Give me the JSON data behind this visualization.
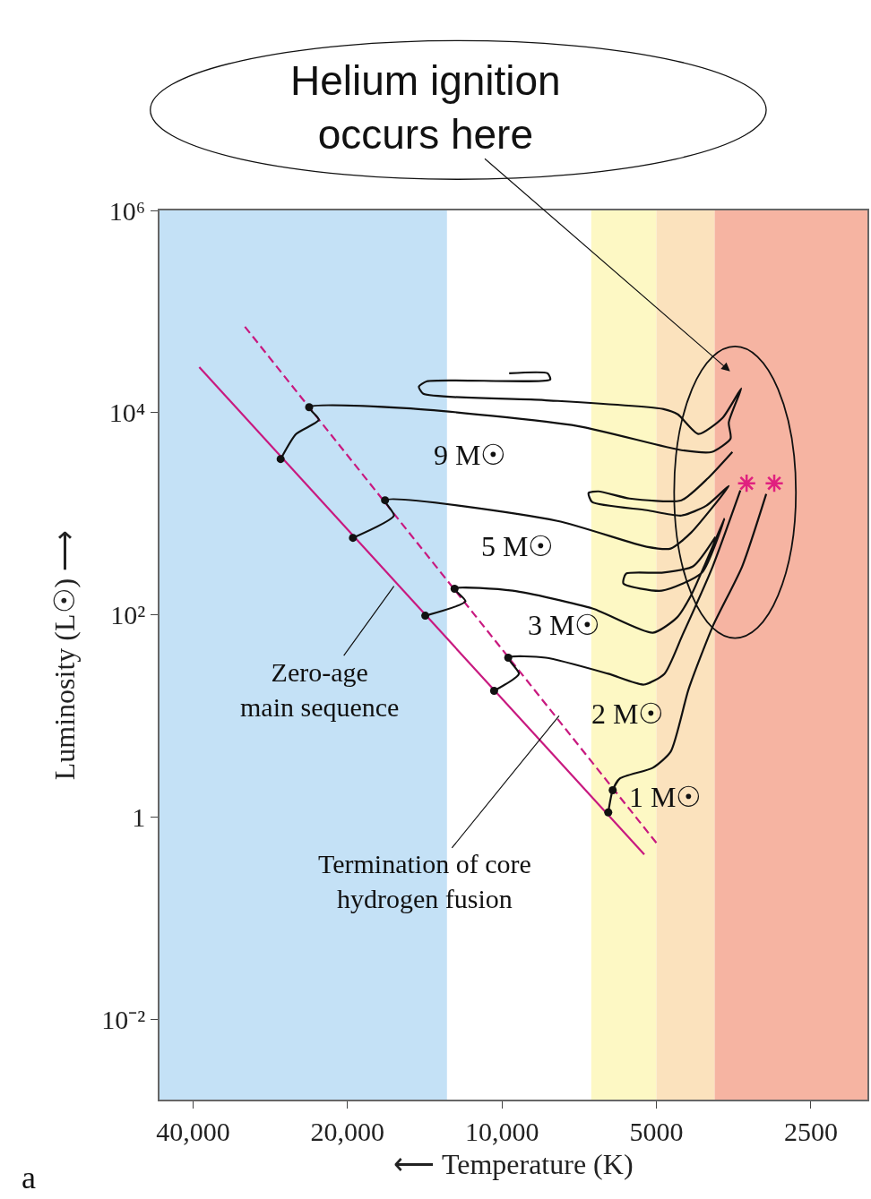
{
  "chart_data": {
    "type": "line",
    "xlabel": "⟵ Temperature (K)",
    "ylabel": "Luminosity (L☉) ⟶",
    "xlim": [
      46500,
      1940
    ],
    "ylim": [
      0.0016,
      1000000
    ],
    "log": "xy",
    "grid": false,
    "xticks": [
      {
        "value": 40000,
        "label": "40,000"
      },
      {
        "value": 20000,
        "label": "20,000"
      },
      {
        "value": 10000,
        "label": "10,000"
      },
      5000,
      2500
    ],
    "yticks": [
      {
        "value": 0.01,
        "label": "10⁻²"
      },
      1,
      {
        "value": 100,
        "label": "10²"
      },
      {
        "value": 10000,
        "label": "10⁴"
      },
      {
        "value": 1000000,
        "label": "10⁶"
      }
    ],
    "bands": [
      {
        "axis": "x",
        "from": 46500,
        "to": 12800,
        "color": "#c4e1f6"
      },
      {
        "axis": "x",
        "from": 6700,
        "to": 5000,
        "color": "#fdf8c4"
      },
      {
        "axis": "x",
        "from": 5000,
        "to": 3850,
        "color": "#fbe2bd"
      },
      {
        "axis": "x",
        "from": 3850,
        "to": 1940,
        "color": "#f6b4a2"
      }
    ],
    "series": [
      {
        "color": "#c8197f",
        "line_style": "solid",
        "x": [
          38900,
          5280
        ],
        "values": [
          28200,
          0.425
        ]
      },
      {
        "color": "#c8197f",
        "line_style": "dashed",
        "x": [
          31700,
          5000
        ],
        "values": [
          70800,
          0.553
        ]
      },
      {
        "name": "9 M☉",
        "color": "#111111",
        "line_style": "solid",
        "x": [
          27000,
          25200,
          22740,
          23760,
          15360,
          7114,
          4470,
          3900,
          3585,
          3614,
          3417,
          3717,
          4142,
          4542,
          4842,
          8282,
          14230,
          14520,
          14000,
          8054,
          8150,
          9683
        ],
        "values": [
          3470,
          6140,
          8490,
          11300,
          11070,
          7360,
          4250,
          4080,
          5540,
          8000,
          17340,
          8850,
          6140,
          9600,
          10840,
          13300,
          15350,
          18070,
          20420,
          21230,
          24490,
          24490
        ]
      },
      {
        "name": "5 M☉",
        "color": "#111111",
        "line_style": "solid",
        "x": [
          19520,
          16240,
          16900,
          7800,
          5225,
          4690,
          4277,
          3614,
          3996,
          4470,
          5225,
          6672,
          6780,
          6486,
          5638,
          4470,
          3963,
          3556
        ],
        "values": [
          577,
          959,
          1358,
          849,
          471,
          452,
          652,
          1880,
          1202,
          959,
          1084,
          1303,
          1600,
          1663,
          1413,
          1358,
          2259,
          4080
        ]
      },
      {
        "name": "3 M☉",
        "color": "#111111",
        "line_style": "solid",
        "x": [
          14110,
          11780,
          12370,
          9530,
          6646,
          5080,
          4560,
          4277,
          3996,
          3687,
          4077,
          4881,
          5799,
          5730,
          4881,
          4243,
          3837
        ],
        "values": [
          98,
          136,
          181,
          173,
          115,
          66.5,
          94,
          157,
          340,
          885,
          261,
          173,
          204,
          255,
          261,
          301,
          589
        ]
      },
      {
        "name": "2 M☉",
        "color": "#111111",
        "line_style": "solid",
        "x": [
          10360,
          9268,
          9723,
          8216,
          6207,
          5288,
          4823,
          4452,
          3884,
          3431
        ],
        "values": [
          17.7,
          26.1,
          37.6,
          37.6,
          26.1,
          20.4,
          26.1,
          62.5,
          301,
          1698
        ]
      },
      {
        "name": "1 M☉",
        "color": "#111111",
        "line_style": "solid",
        "x": [
          6207,
          6084,
          5893,
          5080,
          4690,
          4328,
          3884,
          3403,
          3055
        ],
        "values": [
          1.11,
          1.84,
          2.4,
          3.07,
          4.43,
          18.4,
          76.7,
          301,
          1567
        ]
      },
      {
        "type": "scatter",
        "color": "#111111",
        "marker": "circle",
        "x": [
          27000,
          23760,
          19520,
          16900,
          14110,
          12370,
          10360,
          9723,
          6207,
          6084
        ],
        "values": [
          3470,
          11300,
          577,
          1358,
          98,
          181,
          17.7,
          37.6,
          1.11,
          1.84
        ]
      },
      {
        "type": "scatter",
        "color": "#e0207f",
        "marker": "cross",
        "x": [
          3336,
          2947
        ],
        "values": [
          2000,
          2000
        ]
      }
    ],
    "annotations": [
      {
        "text": "Zero-age\nmain sequence",
        "x": 16240,
        "y": 192
      },
      {
        "text": "Termination of core\nhydrogen fusion",
        "x": 7740,
        "y": 10
      },
      "Helium ignition\noccurs here",
      "a"
    ]
  }
}
